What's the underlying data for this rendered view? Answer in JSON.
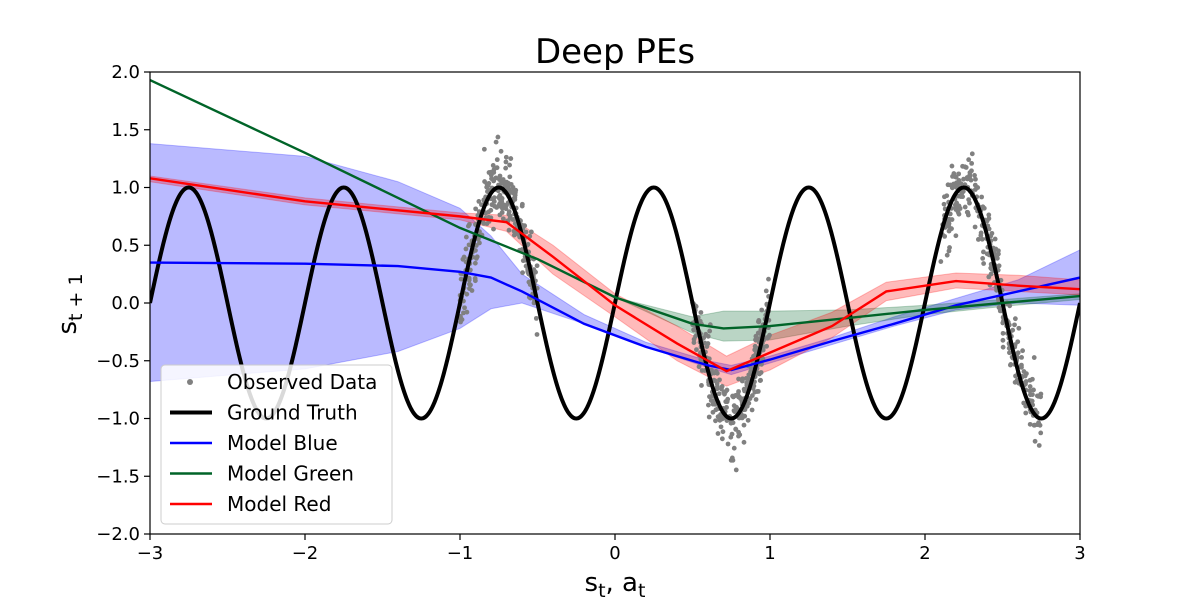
{
  "chart_data": {
    "type": "line",
    "title": "Deep PEs",
    "xlabel": "s_t, a_t",
    "ylabel": "s_{t+1}",
    "xlim": [
      -3,
      3
    ],
    "ylim": [
      -2,
      2
    ],
    "xticks": [
      -3,
      -2,
      -1,
      0,
      1,
      2,
      3
    ],
    "yticks": [
      -2.0,
      -1.5,
      -1.0,
      -0.5,
      0.0,
      0.5,
      1.0,
      1.5,
      2.0
    ],
    "x_tick_labels": [
      "−3",
      "−2",
      "−1",
      "0",
      "1",
      "2",
      "3"
    ],
    "y_tick_labels": [
      "−2.0",
      "−1.5",
      "−1.0",
      "−0.5",
      "0.0",
      "0.5",
      "1.0",
      "1.5",
      "2.0"
    ],
    "grid": false,
    "legend_position": "lower-left",
    "ground_truth": {
      "name": "Ground Truth",
      "function": "sin(2*pi*x)",
      "color": "#000000"
    },
    "observed_data": {
      "name": "Observed Data",
      "color": "#808080",
      "x_ranges": [
        [
          -1.0,
          -0.5
        ],
        [
          0.5,
          1.0
        ],
        [
          2.1,
          2.75
        ]
      ],
      "noise_level": 0.15
    },
    "series": [
      {
        "name": "Model Blue",
        "color": "#0000ff",
        "x": [
          -3,
          -2,
          -1.4,
          -1,
          -0.8,
          -0.6,
          -0.2,
          0.2,
          0.6,
          0.75,
          1.0,
          1.4,
          1.8,
          2.2,
          2.6,
          3.0
        ],
        "mean": [
          0.35,
          0.34,
          0.32,
          0.27,
          0.22,
          0.1,
          -0.18,
          -0.38,
          -0.54,
          -0.58,
          -0.49,
          -0.33,
          -0.18,
          -0.02,
          0.1,
          0.22
        ],
        "lower": [
          -0.68,
          -0.57,
          -0.42,
          -0.22,
          -0.05,
          0.0,
          -0.18,
          -0.38,
          -0.56,
          -0.62,
          -0.52,
          -0.36,
          -0.2,
          -0.06,
          0.0,
          -0.02
        ],
        "upper": [
          1.38,
          1.27,
          1.05,
          0.82,
          0.58,
          0.25,
          -0.1,
          -0.34,
          -0.5,
          -0.54,
          -0.46,
          -0.3,
          -0.12,
          0.04,
          0.2,
          0.46
        ]
      },
      {
        "name": "Model Green",
        "color": "#006428",
        "x": [
          -3,
          -2,
          -1,
          -0.5,
          0,
          0.5,
          0.7,
          1.0,
          1.5,
          2,
          2.5,
          3
        ],
        "mean": [
          1.93,
          1.3,
          0.65,
          0.38,
          0.05,
          -0.18,
          -0.22,
          -0.2,
          -0.13,
          -0.06,
          0.0,
          0.06
        ],
        "lower": [
          1.93,
          1.3,
          0.65,
          0.38,
          0.05,
          -0.26,
          -0.33,
          -0.32,
          -0.2,
          -0.1,
          -0.03,
          0.03
        ],
        "upper": [
          1.93,
          1.3,
          0.65,
          0.38,
          0.05,
          -0.12,
          -0.07,
          -0.07,
          -0.06,
          -0.02,
          0.03,
          0.08
        ]
      },
      {
        "name": "Model Red",
        "color": "#ff0000",
        "x": [
          -3,
          -2,
          -1,
          -0.7,
          -0.4,
          0,
          0.4,
          0.72,
          1.0,
          1.4,
          1.75,
          2.2,
          2.6,
          3.0
        ],
        "mean": [
          1.08,
          0.88,
          0.75,
          0.7,
          0.4,
          -0.02,
          -0.35,
          -0.59,
          -0.43,
          -0.2,
          0.1,
          0.19,
          0.15,
          0.12
        ],
        "lower": [
          1.05,
          0.85,
          0.72,
          0.62,
          0.25,
          -0.12,
          -0.5,
          -0.72,
          -0.58,
          -0.3,
          0.02,
          0.13,
          0.1,
          0.07
        ],
        "upper": [
          1.1,
          0.91,
          0.78,
          0.76,
          0.5,
          0.08,
          -0.2,
          -0.46,
          -0.28,
          -0.08,
          0.18,
          0.26,
          0.24,
          0.2
        ]
      }
    ],
    "legend": [
      "Observed Data",
      "Ground Truth",
      "Model Blue",
      "Model Green",
      "Model Red"
    ]
  }
}
